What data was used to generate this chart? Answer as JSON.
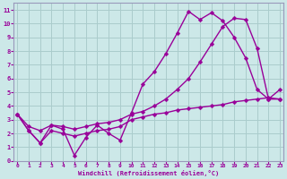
{
  "bg_color": "#cce8e8",
  "grid_color": "#aacccc",
  "line_color": "#990099",
  "xlabel": "Windchill (Refroidissement éolien,°C)",
  "xlim_min": -0.3,
  "xlim_max": 23.3,
  "ylim_min": 0,
  "ylim_max": 11.5,
  "xticks": [
    0,
    1,
    2,
    3,
    4,
    5,
    6,
    7,
    8,
    9,
    10,
    11,
    12,
    13,
    14,
    15,
    16,
    17,
    18,
    19,
    20,
    21,
    22,
    23
  ],
  "yticks": [
    0,
    1,
    2,
    3,
    4,
    5,
    6,
    7,
    8,
    9,
    10,
    11
  ],
  "line1_x": [
    0,
    1,
    2,
    3,
    4,
    5,
    6,
    7,
    8,
    9,
    10,
    11,
    12,
    13,
    14,
    15,
    16,
    17,
    18,
    19,
    20,
    21,
    22,
    23
  ],
  "line1_y": [
    3.4,
    2.2,
    1.3,
    2.6,
    2.3,
    0.4,
    1.7,
    2.6,
    2.0,
    1.5,
    3.5,
    5.6,
    6.5,
    7.8,
    9.3,
    10.9,
    10.3,
    10.8,
    10.2,
    9.0,
    7.5,
    5.2,
    4.5,
    5.2
  ],
  "line2_x": [
    0,
    1,
    2,
    3,
    4,
    5,
    6,
    7,
    8,
    9,
    10,
    11,
    12,
    13,
    14,
    15,
    16,
    17,
    18,
    19,
    20,
    21,
    22,
    23
  ],
  "line2_y": [
    3.4,
    2.5,
    2.2,
    2.6,
    2.5,
    2.3,
    2.5,
    2.7,
    2.8,
    3.0,
    3.4,
    3.6,
    4.0,
    4.5,
    5.2,
    6.0,
    7.2,
    8.5,
    9.8,
    10.4,
    10.3,
    8.2,
    4.5,
    4.5
  ],
  "line3_x": [
    0,
    1,
    2,
    3,
    4,
    5,
    6,
    7,
    8,
    9,
    10,
    11,
    12,
    13,
    14,
    15,
    16,
    17,
    18,
    19,
    20,
    21,
    22,
    23
  ],
  "line3_y": [
    3.4,
    2.2,
    1.3,
    2.2,
    2.0,
    1.8,
    2.0,
    2.2,
    2.3,
    2.5,
    3.0,
    3.2,
    3.4,
    3.5,
    3.7,
    3.8,
    3.9,
    4.0,
    4.1,
    4.3,
    4.4,
    4.5,
    4.6,
    4.5
  ]
}
